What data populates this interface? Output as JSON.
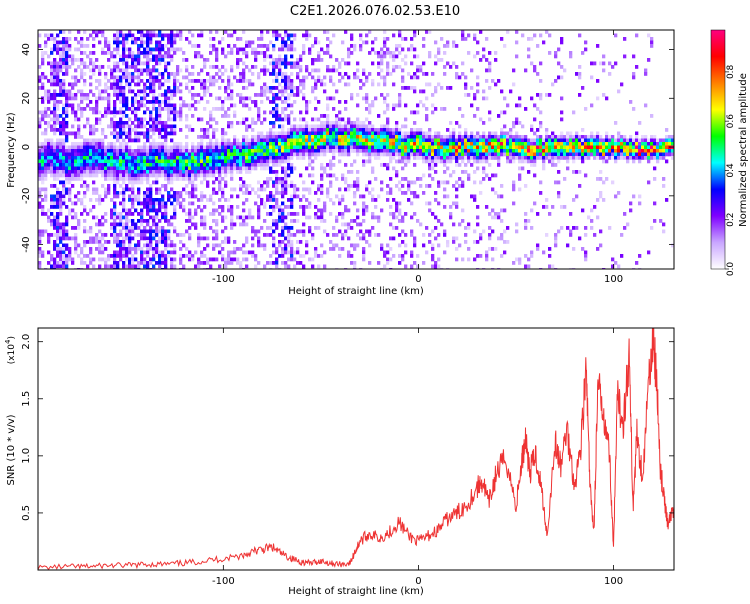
{
  "title": "C2E1.2026.076.02.53.E10",
  "colors": {
    "snr_line": "#ee3333",
    "axis": "#000000"
  },
  "chart_data": [
    {
      "type": "heatmap",
      "xlabel": "Height of straight line (km)",
      "ylabel": "Frequency (Hz)",
      "xlim": [
        -195,
        131
      ],
      "ylim": [
        -50,
        48
      ],
      "xticks": [
        -100,
        0,
        100
      ],
      "xtick_labels": [
        "-100",
        "0",
        "100"
      ],
      "yticks": [
        -40,
        -20,
        0,
        20,
        40
      ],
      "ytick_labels": [
        "-40",
        "-20",
        "0",
        "20",
        "40"
      ],
      "colorbar": {
        "label": "Normalized spectral amplitude",
        "range": [
          0,
          0.97
        ],
        "ticks": [
          0.0,
          0.2,
          0.4,
          0.6,
          0.8
        ],
        "tick_labels": [
          "0.0",
          "0.2",
          "0.4",
          "0.6",
          "0.8"
        ],
        "colormap": [
          "#ffffff",
          "#c9a6ff",
          "#7f00ff",
          "#0000ff",
          "#00ffff",
          "#00ff00",
          "#ffff00",
          "#ff8000",
          "#ff0000",
          "#ff0080"
        ]
      },
      "ridge": {
        "x": [
          -195,
          -180,
          -165,
          -150,
          -135,
          -120,
          -105,
          -90,
          -75,
          -60,
          -45,
          -30,
          -15,
          0,
          15,
          30,
          45,
          60,
          75,
          90,
          105,
          120,
          131
        ],
        "freq_hz": [
          -4,
          -5,
          -4,
          -6,
          -5,
          -6,
          -4,
          -2,
          1,
          3,
          5,
          4,
          2,
          1,
          0,
          1,
          1,
          0,
          0,
          0,
          0,
          0,
          0
        ]
      }
    },
    {
      "type": "line",
      "xlabel": "Height of straight line (km)",
      "ylabel": "SNR (10 * v/v)",
      "y_multiplier": "(x10",
      "y_multiplier_exp": "4",
      "y_multiplier_close": ")",
      "xlim": [
        -195,
        131
      ],
      "ylim": [
        0,
        2.12
      ],
      "xticks": [
        -100,
        0,
        100
      ],
      "xtick_labels": [
        "-100",
        "0",
        "100"
      ],
      "yticks": [
        0.5,
        1.0,
        1.5,
        2.0
      ],
      "ytick_labels": [
        "0.5",
        "1.0",
        "1.5",
        "2.0"
      ],
      "series": [
        {
          "name": "SNR",
          "x": [
            -195,
            -180,
            -170,
            -160,
            -150,
            -140,
            -130,
            -120,
            -110,
            -100,
            -90,
            -85,
            -80,
            -75,
            -70,
            -65,
            -60,
            -55,
            -50,
            -45,
            -40,
            -35,
            -32,
            -30,
            -25,
            -20,
            -15,
            -10,
            -5,
            0,
            5,
            10,
            15,
            20,
            25,
            30,
            33,
            36,
            40,
            45,
            50,
            53,
            55,
            57,
            60,
            63,
            66,
            70,
            73,
            76,
            80,
            83,
            86,
            88,
            90,
            92,
            95,
            98,
            100,
            102,
            105,
            108,
            110,
            112,
            115,
            118,
            120,
            122,
            124,
            126,
            128,
            131
          ],
          "y": [
            0.02,
            0.03,
            0.03,
            0.04,
            0.04,
            0.05,
            0.05,
            0.06,
            0.08,
            0.1,
            0.13,
            0.16,
            0.18,
            0.2,
            0.14,
            0.1,
            0.07,
            0.06,
            0.08,
            0.06,
            0.05,
            0.06,
            0.18,
            0.25,
            0.32,
            0.28,
            0.33,
            0.42,
            0.3,
            0.25,
            0.3,
            0.35,
            0.45,
            0.5,
            0.58,
            0.72,
            0.78,
            0.58,
            0.85,
            0.98,
            0.55,
            0.95,
            1.18,
            0.85,
            1.02,
            0.72,
            0.3,
            1.12,
            0.9,
            1.25,
            0.75,
            1.05,
            1.75,
            0.7,
            0.35,
            1.6,
            1.4,
            1.0,
            0.18,
            1.5,
            1.3,
            1.88,
            0.55,
            1.2,
            0.8,
            1.65,
            2.05,
            1.7,
            0.9,
            0.6,
            0.4,
            0.55
          ]
        }
      ]
    }
  ]
}
